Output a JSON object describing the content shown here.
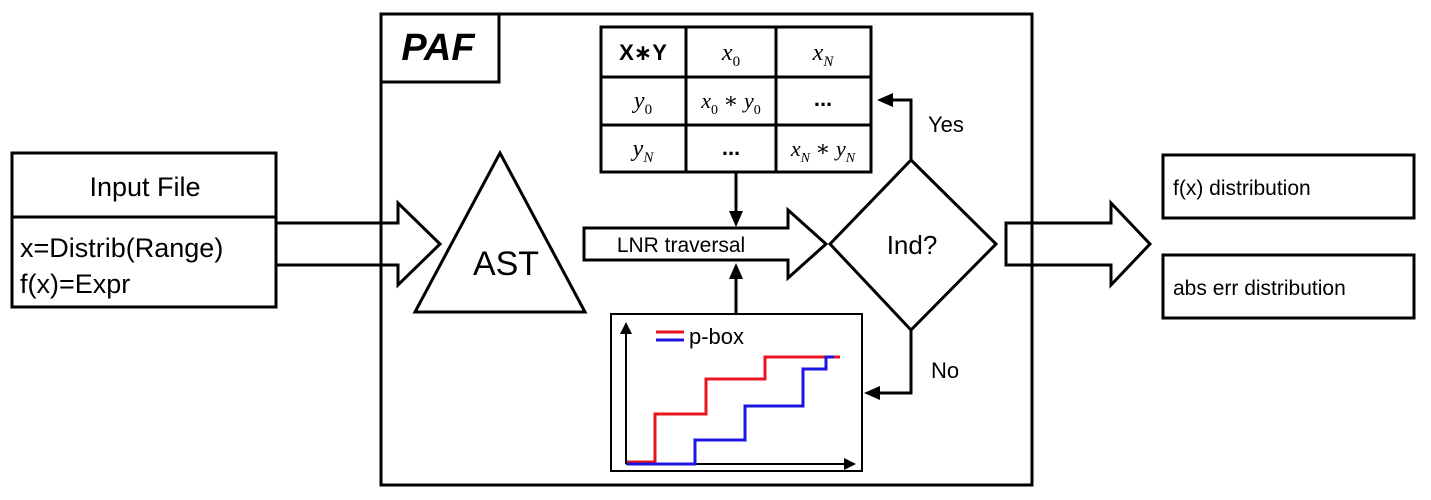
{
  "paf_label": "PAF",
  "input_file": {
    "title": "Input File",
    "line1": "x=Distrib(Range)",
    "line2": "f(x)=Expr"
  },
  "ast_label": "AST",
  "traversal_label": "LNR traversal",
  "decision": {
    "label": "Ind?",
    "yes_label": "Yes",
    "no_label": "No"
  },
  "outputs": {
    "fx_distribution": "f(x) distribution",
    "abs_err_distribution": "abs err distribution"
  },
  "table": {
    "corner": "X∗Y",
    "ellipsis": "..."
  },
  "pbox": {
    "legend": "p-box",
    "upper_color": "#e8141e",
    "lower_color": "#1c14e0"
  }
}
